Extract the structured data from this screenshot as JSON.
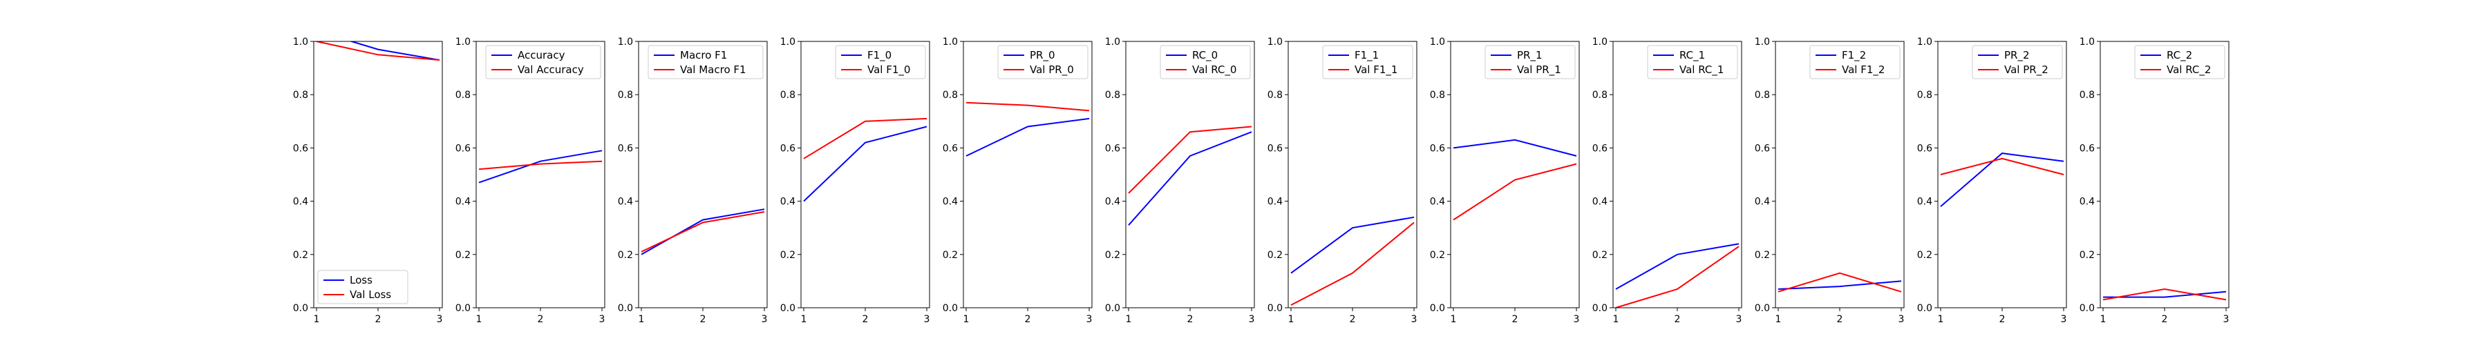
{
  "chart_data": [
    {
      "type": "line",
      "x": [
        1,
        2,
        3
      ],
      "xticks": [
        "1",
        "2",
        "3"
      ],
      "ylim": [
        0,
        1
      ],
      "yticks": [
        "0.0",
        "0.2",
        "0.4",
        "0.6",
        "0.8",
        "1.0"
      ],
      "legend_loc": "lower-left",
      "series": [
        {
          "name": "Loss",
          "color": "#0000ff",
          "values": [
            1.04,
            0.97,
            0.93
          ]
        },
        {
          "name": "Val Loss",
          "color": "#ff0000",
          "values": [
            1.0,
            0.95,
            0.93
          ]
        }
      ]
    },
    {
      "type": "line",
      "x": [
        1,
        2,
        3
      ],
      "xticks": [
        "1",
        "2",
        "3"
      ],
      "ylim": [
        0,
        1
      ],
      "yticks": [
        "0.0",
        "0.2",
        "0.4",
        "0.6",
        "0.8",
        "1.0"
      ],
      "legend_loc": "top-right",
      "series": [
        {
          "name": "Accuracy",
          "color": "#0000ff",
          "values": [
            0.47,
            0.55,
            0.59
          ]
        },
        {
          "name": "Val Accuracy",
          "color": "#ff0000",
          "values": [
            0.52,
            0.54,
            0.55
          ]
        }
      ]
    },
    {
      "type": "line",
      "x": [
        1,
        2,
        3
      ],
      "xticks": [
        "1",
        "2",
        "3"
      ],
      "ylim": [
        0,
        1
      ],
      "yticks": [
        "0.0",
        "0.2",
        "0.4",
        "0.6",
        "0.8",
        "1.0"
      ],
      "legend_loc": "top-right",
      "series": [
        {
          "name": "Macro F1",
          "color": "#0000ff",
          "values": [
            0.2,
            0.33,
            0.37
          ]
        },
        {
          "name": "Val Macro F1",
          "color": "#ff0000",
          "values": [
            0.21,
            0.32,
            0.36
          ]
        }
      ]
    },
    {
      "type": "line",
      "x": [
        1,
        2,
        3
      ],
      "xticks": [
        "1",
        "2",
        "3"
      ],
      "ylim": [
        0,
        1
      ],
      "yticks": [
        "0.0",
        "0.2",
        "0.4",
        "0.6",
        "0.8",
        "1.0"
      ],
      "legend_loc": "top-right",
      "series": [
        {
          "name": "F1_0",
          "color": "#0000ff",
          "values": [
            0.4,
            0.62,
            0.68
          ]
        },
        {
          "name": "Val F1_0",
          "color": "#ff0000",
          "values": [
            0.56,
            0.7,
            0.71
          ]
        }
      ]
    },
    {
      "type": "line",
      "x": [
        1,
        2,
        3
      ],
      "xticks": [
        "1",
        "2",
        "3"
      ],
      "ylim": [
        0,
        1
      ],
      "yticks": [
        "0.0",
        "0.2",
        "0.4",
        "0.6",
        "0.8",
        "1.0"
      ],
      "legend_loc": "top-right",
      "series": [
        {
          "name": "PR_0",
          "color": "#0000ff",
          "values": [
            0.57,
            0.68,
            0.71
          ]
        },
        {
          "name": "Val PR_0",
          "color": "#ff0000",
          "values": [
            0.77,
            0.76,
            0.74
          ]
        }
      ]
    },
    {
      "type": "line",
      "x": [
        1,
        2,
        3
      ],
      "xticks": [
        "1",
        "2",
        "3"
      ],
      "ylim": [
        0,
        1
      ],
      "yticks": [
        "0.0",
        "0.2",
        "0.4",
        "0.6",
        "0.8",
        "1.0"
      ],
      "legend_loc": "top-right",
      "series": [
        {
          "name": "RC_0",
          "color": "#0000ff",
          "values": [
            0.31,
            0.57,
            0.66
          ]
        },
        {
          "name": "Val RC_0",
          "color": "#ff0000",
          "values": [
            0.43,
            0.66,
            0.68
          ]
        }
      ]
    },
    {
      "type": "line",
      "x": [
        1,
        2,
        3
      ],
      "xticks": [
        "1",
        "2",
        "3"
      ],
      "ylim": [
        0,
        1
      ],
      "yticks": [
        "0.0",
        "0.2",
        "0.4",
        "0.6",
        "0.8",
        "1.0"
      ],
      "legend_loc": "top-right",
      "series": [
        {
          "name": "F1_1",
          "color": "#0000ff",
          "values": [
            0.13,
            0.3,
            0.34
          ]
        },
        {
          "name": "Val F1_1",
          "color": "#ff0000",
          "values": [
            0.01,
            0.13,
            0.32
          ]
        }
      ]
    },
    {
      "type": "line",
      "x": [
        1,
        2,
        3
      ],
      "xticks": [
        "1",
        "2",
        "3"
      ],
      "ylim": [
        0,
        1
      ],
      "yticks": [
        "0.0",
        "0.2",
        "0.4",
        "0.6",
        "0.8",
        "1.0"
      ],
      "legend_loc": "top-right",
      "series": [
        {
          "name": "PR_1",
          "color": "#0000ff",
          "values": [
            0.6,
            0.63,
            0.57
          ]
        },
        {
          "name": "Val PR_1",
          "color": "#ff0000",
          "values": [
            0.33,
            0.48,
            0.54
          ]
        }
      ]
    },
    {
      "type": "line",
      "x": [
        1,
        2,
        3
      ],
      "xticks": [
        "1",
        "2",
        "3"
      ],
      "ylim": [
        0,
        1
      ],
      "yticks": [
        "0.0",
        "0.2",
        "0.4",
        "0.6",
        "0.8",
        "1.0"
      ],
      "legend_loc": "top-right",
      "series": [
        {
          "name": "RC_1",
          "color": "#0000ff",
          "values": [
            0.07,
            0.2,
            0.24
          ]
        },
        {
          "name": "Val RC_1",
          "color": "#ff0000",
          "values": [
            0.0,
            0.07,
            0.23
          ]
        }
      ]
    },
    {
      "type": "line",
      "x": [
        1,
        2,
        3
      ],
      "xticks": [
        "1",
        "2",
        "3"
      ],
      "ylim": [
        0,
        1
      ],
      "yticks": [
        "0.0",
        "0.2",
        "0.4",
        "0.6",
        "0.8",
        "1.0"
      ],
      "legend_loc": "top-right",
      "series": [
        {
          "name": "F1_2",
          "color": "#0000ff",
          "values": [
            0.07,
            0.08,
            0.1
          ]
        },
        {
          "name": "Val F1_2",
          "color": "#ff0000",
          "values": [
            0.06,
            0.13,
            0.06
          ]
        }
      ]
    },
    {
      "type": "line",
      "x": [
        1,
        2,
        3
      ],
      "xticks": [
        "1",
        "2",
        "3"
      ],
      "ylim": [
        0,
        1
      ],
      "yticks": [
        "0.0",
        "0.2",
        "0.4",
        "0.6",
        "0.8",
        "1.0"
      ],
      "legend_loc": "top-right",
      "series": [
        {
          "name": "PR_2",
          "color": "#0000ff",
          "values": [
            0.38,
            0.58,
            0.55
          ]
        },
        {
          "name": "Val PR_2",
          "color": "#ff0000",
          "values": [
            0.5,
            0.56,
            0.5
          ]
        }
      ]
    },
    {
      "type": "line",
      "x": [
        1,
        2,
        3
      ],
      "xticks": [
        "1",
        "2",
        "3"
      ],
      "ylim": [
        0,
        1
      ],
      "yticks": [
        "0.0",
        "0.2",
        "0.4",
        "0.6",
        "0.8",
        "1.0"
      ],
      "legend_loc": "top-right",
      "series": [
        {
          "name": "RC_2",
          "color": "#0000ff",
          "values": [
            0.04,
            0.04,
            0.06
          ]
        },
        {
          "name": "Val RC_2",
          "color": "#ff0000",
          "values": [
            0.03,
            0.07,
            0.03
          ]
        }
      ]
    }
  ]
}
